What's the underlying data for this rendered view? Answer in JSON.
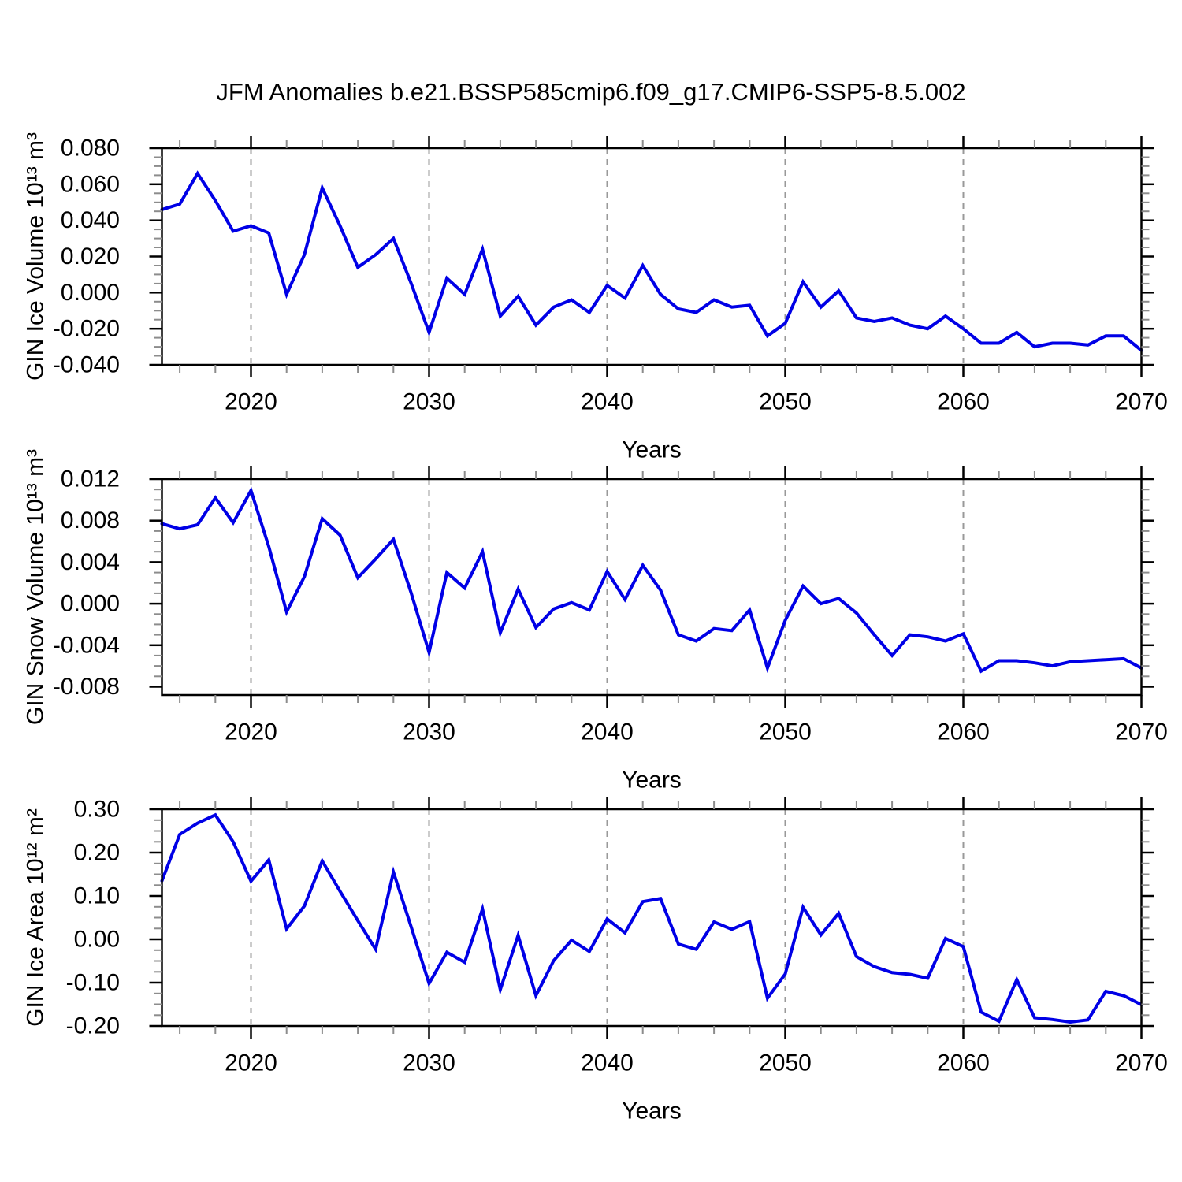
{
  "title": "JFM Anomalies b.e21.BSSP585cmip6.f09_g17.CMIP6-SSP5-8.5.002",
  "figure": {
    "colors": {
      "line": "#0000e6",
      "axis": "#000000",
      "minor_tick": "#8c8c8c",
      "grid": "#999999",
      "text": "#000000",
      "background": "#ffffff"
    }
  },
  "years": [
    2015,
    2016,
    2017,
    2018,
    2019,
    2020,
    2021,
    2022,
    2023,
    2024,
    2025,
    2026,
    2027,
    2028,
    2029,
    2030,
    2031,
    2032,
    2033,
    2034,
    2035,
    2036,
    2037,
    2038,
    2039,
    2040,
    2041,
    2042,
    2043,
    2044,
    2045,
    2046,
    2047,
    2048,
    2049,
    2050,
    2051,
    2052,
    2053,
    2054,
    2055,
    2056,
    2057,
    2058,
    2059,
    2060,
    2061,
    2062,
    2063,
    2064,
    2065,
    2066,
    2067,
    2068,
    2069,
    2070
  ],
  "x_axis": {
    "label": "Years",
    "range": [
      2015,
      2070
    ],
    "ticks": [
      2020,
      2030,
      2040,
      2050,
      2060,
      2070
    ],
    "tick_labels": [
      "2020",
      "2030",
      "2040",
      "2050",
      "2060",
      "2070"
    ],
    "minor_step": 2,
    "grid_lines": [
      2020,
      2030,
      2040,
      2050,
      2060
    ],
    "grid_style": "dashed"
  },
  "chart_data": [
    {
      "type": "line",
      "name": "gin-ice-volume",
      "ylabel": "GIN Ice Volume 10¹³ m³",
      "xlabel": "Years",
      "x": "shared: years array (2015-2070 annual)",
      "ylim": [
        -0.04,
        0.08
      ],
      "yticks": [
        0.08,
        0.06,
        0.04,
        0.02,
        0.0,
        -0.02,
        -0.04
      ],
      "ytick_labels": [
        "0.080",
        "0.060",
        "0.040",
        "0.020",
        "0.000",
        "-0.020",
        "-0.040"
      ],
      "yminor_step": 0.005,
      "values": [
        0.046,
        0.049,
        0.066,
        0.051,
        0.034,
        0.037,
        0.033,
        -0.001,
        0.021,
        0.058,
        0.037,
        0.014,
        0.021,
        0.03,
        0.005,
        -0.022,
        0.008,
        -0.001,
        0.024,
        -0.013,
        -0.002,
        -0.018,
        -0.008,
        -0.004,
        -0.011,
        0.004,
        -0.003,
        0.015,
        -0.001,
        -0.009,
        -0.011,
        -0.004,
        -0.008,
        -0.007,
        -0.024,
        -0.017,
        0.006,
        -0.008,
        0.001,
        -0.014,
        -0.016,
        -0.014,
        -0.018,
        -0.02,
        -0.013,
        -0.02,
        -0.028,
        -0.028,
        -0.022,
        -0.03,
        -0.028,
        -0.028,
        -0.029,
        -0.024,
        -0.024,
        -0.032
      ]
    },
    {
      "type": "line",
      "name": "gin-snow-volume",
      "ylabel": "GIN Snow Volume 10¹³ m³",
      "xlabel": "Years",
      "x": "shared: years array (2015-2070 annual)",
      "ylim": [
        -0.0088,
        0.012
      ],
      "yticks": [
        0.012,
        0.008,
        0.004,
        0.0,
        -0.004,
        -0.008
      ],
      "ytick_labels": [
        "0.012",
        "0.008",
        "0.004",
        "0.000",
        "-0.004",
        "-0.008"
      ],
      "yminor_step": 0.001,
      "values": [
        0.0077,
        0.0072,
        0.0076,
        0.0102,
        0.0078,
        0.0109,
        0.0055,
        -0.0008,
        0.0026,
        0.0082,
        0.0066,
        0.0025,
        0.0043,
        0.0062,
        0.001,
        -0.0047,
        0.003,
        0.0015,
        0.005,
        -0.0028,
        0.0014,
        -0.0023,
        -0.0005,
        0.0001,
        -0.0006,
        0.0031,
        0.0004,
        0.0037,
        0.0013,
        -0.003,
        -0.0036,
        -0.0024,
        -0.0026,
        -0.0006,
        -0.0062,
        -0.0016,
        0.0017,
        0.0,
        0.0005,
        -0.0009,
        -0.003,
        -0.005,
        -0.003,
        -0.0032,
        -0.0036,
        -0.0029,
        -0.0065,
        -0.0055,
        -0.0055,
        -0.0057,
        -0.006,
        -0.0056,
        -0.0055,
        -0.0054,
        -0.0053,
        -0.0062
      ]
    },
    {
      "type": "line",
      "name": "gin-ice-area",
      "ylabel": "GIN Ice Area 10¹² m²",
      "xlabel": "Years",
      "x": "shared: years array (2015-2070 annual)",
      "ylim": [
        -0.2,
        0.3
      ],
      "yticks": [
        0.3,
        0.2,
        0.1,
        0.0,
        -0.1,
        -0.2
      ],
      "ytick_labels": [
        "0.30",
        "0.20",
        "0.10",
        "0.00",
        "-0.10",
        "-0.20"
      ],
      "yminor_step": 0.025,
      "values": [
        0.135,
        0.242,
        0.268,
        0.287,
        0.225,
        0.134,
        0.183,
        0.024,
        0.077,
        0.181,
        0.111,
        0.043,
        -0.023,
        0.155,
        0.028,
        -0.102,
        -0.03,
        -0.053,
        0.07,
        -0.116,
        0.009,
        -0.13,
        -0.049,
        -0.002,
        -0.028,
        0.047,
        0.015,
        0.087,
        0.094,
        -0.011,
        -0.023,
        0.04,
        0.023,
        0.041,
        -0.136,
        -0.08,
        0.074,
        0.01,
        0.06,
        -0.04,
        -0.063,
        -0.077,
        -0.081,
        -0.09,
        0.002,
        -0.017,
        -0.168,
        -0.189,
        -0.093,
        -0.181,
        -0.185,
        -0.191,
        -0.186,
        -0.12,
        -0.13,
        -0.151
      ]
    }
  ]
}
